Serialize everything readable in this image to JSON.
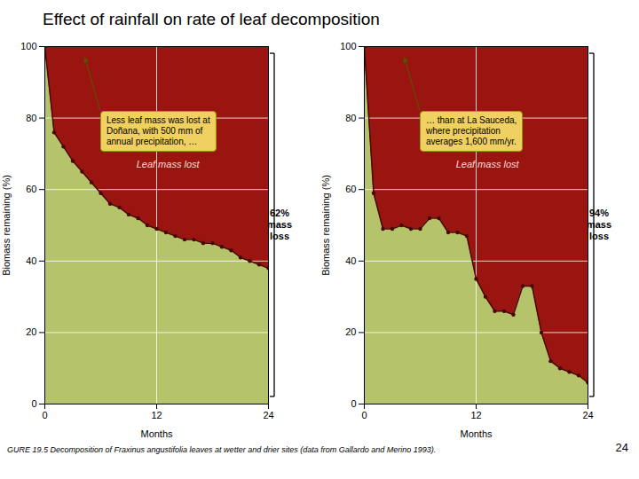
{
  "title": "Effect of rainfall on rate of leaf decomposition",
  "caption": "GURE 19.5  Decomposition of Fraxinus angustifolia leaves at wetter and drier sites (data from Gallardo and Merino 1993).",
  "page_number": "24",
  "chart_data": [
    {
      "type": "area",
      "x": [
        0,
        1,
        2,
        3,
        4,
        5,
        6,
        7,
        8,
        9,
        10,
        11,
        12,
        13,
        14,
        15,
        16,
        17,
        18,
        19,
        20,
        21,
        22,
        23,
        24
      ],
      "values": [
        100,
        76,
        72,
        68,
        65,
        62,
        59,
        56,
        55,
        53,
        52,
        50,
        49,
        48,
        47,
        46,
        46,
        45,
        45,
        44,
        43,
        41,
        40,
        39,
        38
      ],
      "xlabel": "Months",
      "ylabel": "Biomass remaining (%)",
      "xlim": [
        0,
        24
      ],
      "ylim": [
        0,
        100
      ],
      "xticks": [
        0,
        12,
        24
      ],
      "yticks": [
        0,
        20,
        40,
        60,
        80,
        100
      ],
      "grid": true,
      "marker": "circle",
      "line_style": "solid",
      "colors": [
        "#b5c46a",
        "#9b1510",
        "#4a0805"
      ],
      "annotations": [
        "Leaf mass lost",
        "Less leaf mass was lost at\nDoñana, with 500 mm of\nannual precipitation, …",
        "62%\nmass\nloss"
      ]
    },
    {
      "type": "area",
      "x": [
        0,
        1,
        2,
        3,
        4,
        5,
        6,
        7,
        8,
        9,
        10,
        11,
        12,
        13,
        14,
        15,
        16,
        17,
        18,
        19,
        20,
        21,
        22,
        23,
        24
      ],
      "values": [
        100,
        59,
        49,
        49,
        50,
        49,
        49,
        52,
        52,
        48,
        48,
        47,
        35,
        30,
        26,
        26,
        25,
        33,
        33,
        20,
        12,
        10,
        9,
        8,
        6
      ],
      "xlabel": "Months",
      "ylabel": "Biomass remaining (%)",
      "xlim": [
        0,
        24
      ],
      "ylim": [
        0,
        100
      ],
      "xticks": [
        0,
        12,
        24
      ],
      "yticks": [
        0,
        20,
        40,
        60,
        80,
        100
      ],
      "grid": true,
      "marker": "circle",
      "line_style": "solid",
      "colors": [
        "#b5c46a",
        "#9b1510",
        "#4a0805"
      ],
      "annotations": [
        "Leaf mass lost",
        "… than at La Sauceda,\nwhere precipitation\naverages 1,600 mm/yr.",
        "94%\nmass\nloss"
      ]
    }
  ]
}
